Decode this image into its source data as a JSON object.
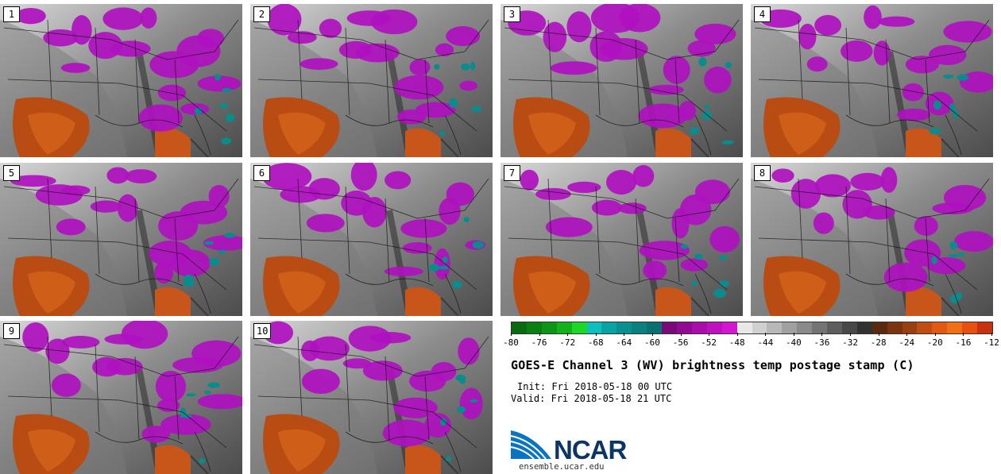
{
  "panels": [
    "1",
    "2",
    "3",
    "4",
    "5",
    "6",
    "7",
    "8",
    "9",
    "10"
  ],
  "colorbar": {
    "colors": [
      "#0a6a10",
      "#0b7f12",
      "#0d9515",
      "#12b31a",
      "#1bd824",
      "#0fbfbf",
      "#0aa3a3",
      "#0a9090",
      "#0a8080",
      "#0a7070",
      "#7a0a7a",
      "#910a91",
      "#a80fa8",
      "#bd12bd",
      "#d216d2",
      "#e8e8e8",
      "#d0d0d0",
      "#b8b8b8",
      "#a0a0a0",
      "#8a8a8a",
      "#747474",
      "#5e5e5e",
      "#484848",
      "#323232",
      "#5a2a10",
      "#7a3410",
      "#9a4010",
      "#c04e12",
      "#e05a14",
      "#f07018",
      "#e85010",
      "#c83010"
    ],
    "tick_labels": [
      "-80",
      "-76",
      "-72",
      "-68",
      "-64",
      "-60",
      "-56",
      "-52",
      "-48",
      "-44",
      "-40",
      "-36",
      "-32",
      "-28",
      "-24",
      "-20",
      "-16",
      "-12"
    ]
  },
  "title": "GOES-E Channel 3 (WV) brightness temp postage stamp (C)",
  "init": "Init: Fri 2018-05-18 00 UTC",
  "valid": "Valid: Fri 2018-05-18 21 UTC",
  "logo_text": "NCAR",
  "site": "ensemble.ucar.edu"
}
